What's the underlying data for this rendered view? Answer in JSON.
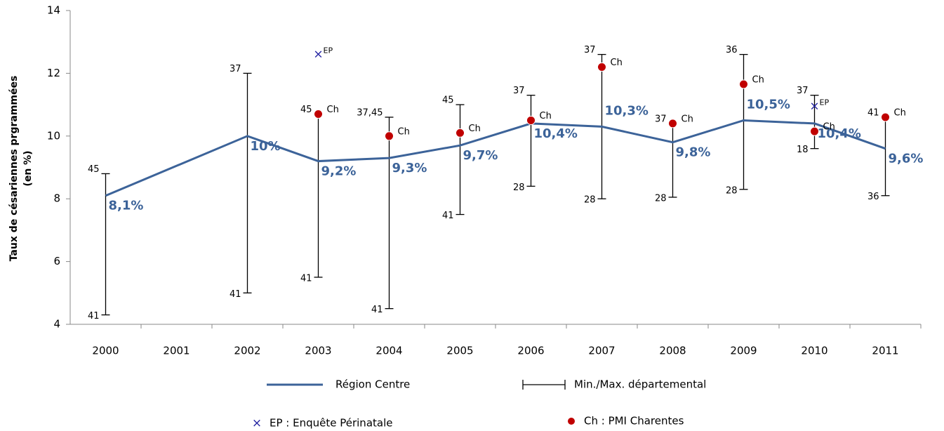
{
  "chart_data": {
    "type": "line",
    "y_label": [
      "Taux de césariennes prgrammées",
      "(en %)"
    ],
    "xlim": [
      1999.5,
      2011.5
    ],
    "xticks": [
      2000,
      2001,
      2002,
      2003,
      2004,
      2005,
      2006,
      2007,
      2008,
      2009,
      2010,
      2011
    ],
    "ylim": [
      4,
      14
    ],
    "yticks": [
      4,
      6,
      8,
      10,
      12,
      14
    ],
    "grid": false,
    "series": [
      {
        "name": "Région Centre",
        "color": "#3c6399",
        "x": [
          2000,
          2002,
          2003,
          2004,
          2005,
          2006,
          2007,
          2008,
          2009,
          2010,
          2011
        ],
        "values": [
          8.1,
          10,
          9.2,
          9.3,
          9.7,
          10.4,
          10.3,
          9.8,
          10.5,
          10.4,
          9.6
        ],
        "value_labels": [
          "8,1%",
          "10%",
          "9,2%",
          "9,3%",
          "9,7%",
          "10,4%",
          "10,3%",
          "9,8%",
          "10,5%",
          "10,4%",
          "9,6%"
        ]
      }
    ],
    "ranges": {
      "name": "Min./Max. départemental",
      "color": "#000000",
      "x": [
        2000,
        2002,
        2003,
        2004,
        2005,
        2006,
        2007,
        2008,
        2009,
        2010,
        2011
      ],
      "low": [
        4.3,
        5.0,
        5.5,
        4.5,
        7.5,
        8.4,
        8.0,
        8.05,
        8.3,
        9.6,
        8.1
      ],
      "high": [
        8.8,
        12.0,
        10.7,
        10.6,
        11.0,
        11.3,
        12.6,
        10.4,
        12.6,
        11.3,
        10.6
      ],
      "low_labels": [
        "41",
        "41",
        "41",
        "41",
        "41",
        "28",
        "28",
        "28",
        "28",
        "18",
        "36"
      ],
      "high_labels": [
        "45",
        "37",
        "45",
        "37,45",
        "45",
        "37",
        "37",
        "37",
        "36",
        "37",
        "41"
      ]
    },
    "markers": [
      {
        "name": "EP : Enquête Périnatale",
        "marker": "x",
        "color": "#1f1fa0",
        "label": "EP",
        "x": [
          2003,
          2010
        ],
        "values": [
          12.6,
          10.95
        ]
      },
      {
        "name": "Ch : PMI Charentes",
        "marker": "dot",
        "color": "#c00000",
        "label": "Ch",
        "x": [
          2003,
          2004,
          2005,
          2006,
          2007,
          2008,
          2009,
          2010,
          2011
        ],
        "values": [
          10.7,
          10.0,
          10.1,
          10.5,
          12.2,
          10.4,
          11.65,
          10.15,
          10.6
        ]
      }
    ]
  }
}
